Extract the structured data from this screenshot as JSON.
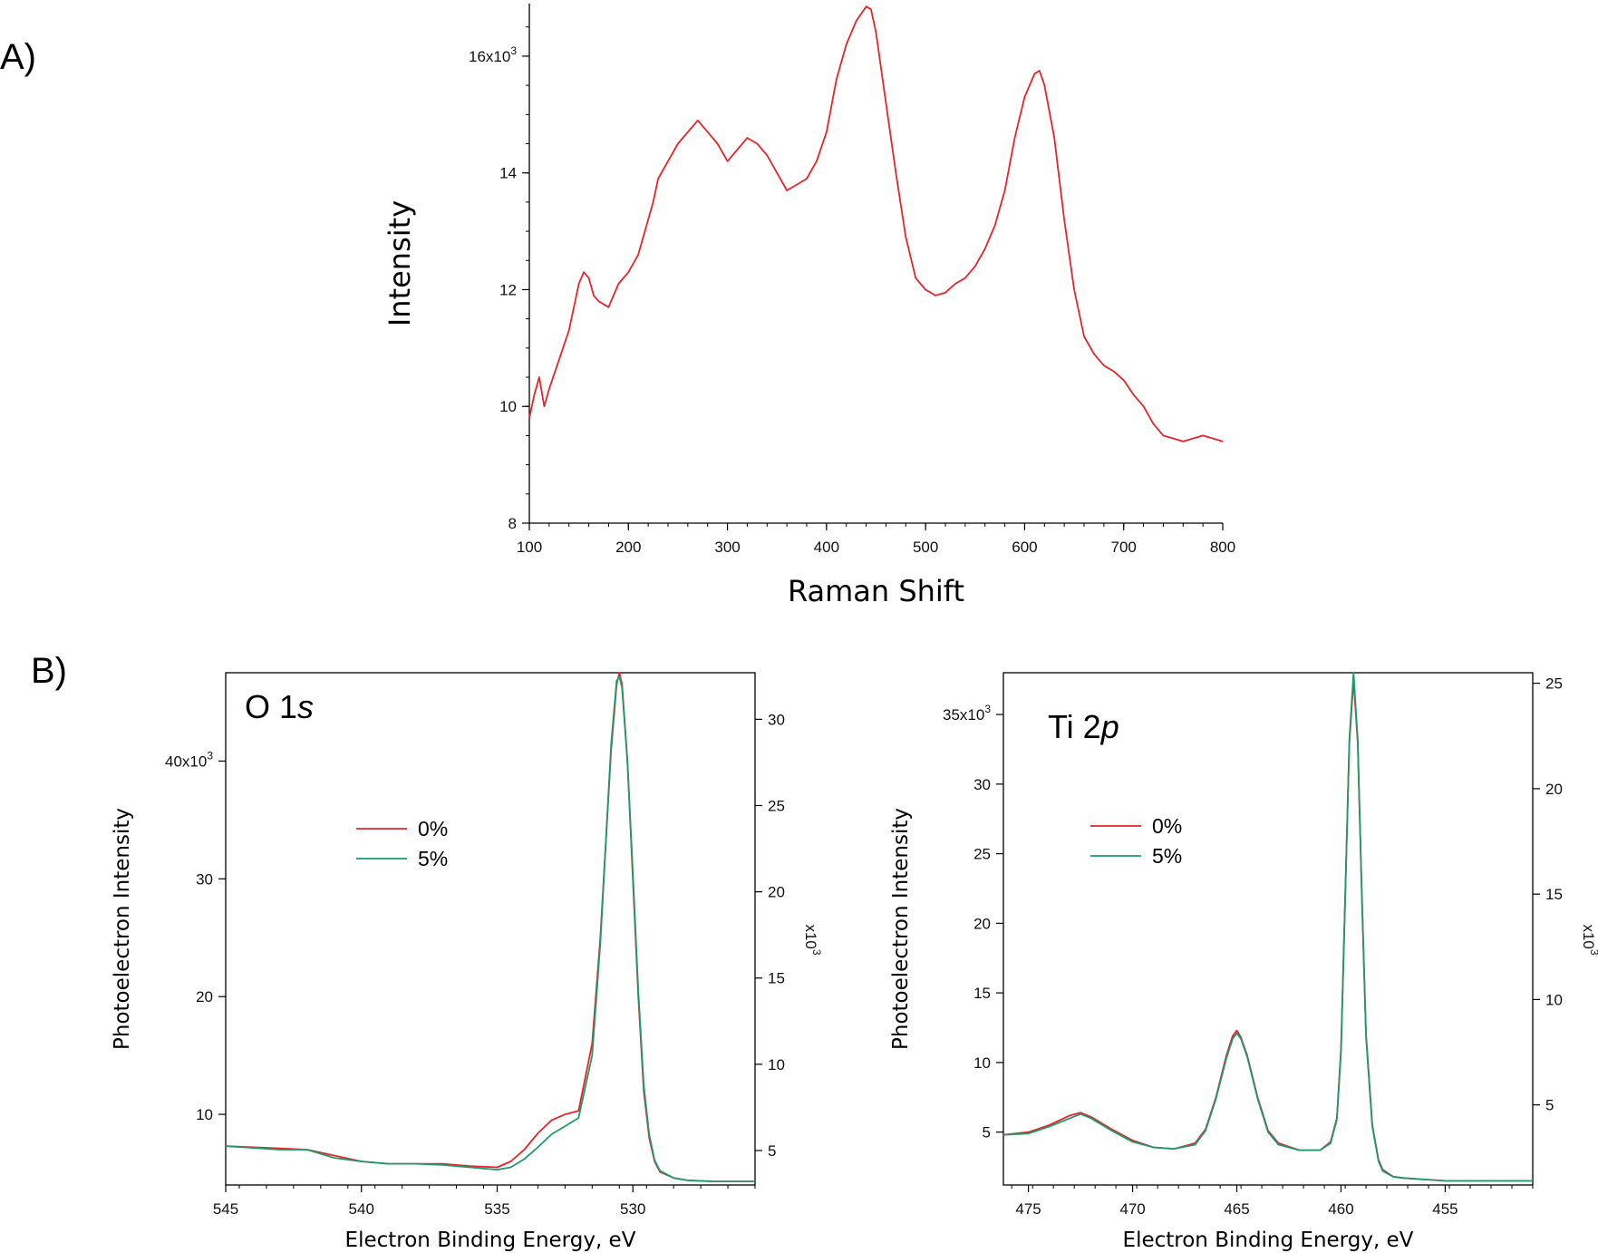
{
  "panel_labels": {
    "a": "A)",
    "b": "B)"
  },
  "colors": {
    "red": "#e8232a",
    "green": "#1e9a6a",
    "axis": "#000000"
  },
  "chart_data": [
    {
      "id": "raman",
      "type": "line",
      "xlabel": "Raman Shift",
      "ylabel": "Intensity",
      "xlim": [
        100,
        800
      ],
      "ylim": [
        8000,
        16900
      ],
      "x_ticks": [
        100,
        200,
        300,
        400,
        500,
        600,
        700,
        800
      ],
      "y_ticks": [
        8000,
        10000,
        12000,
        14000,
        16000
      ],
      "y_tick_labels": [
        "8",
        "10",
        "12",
        "14",
        "16x10³"
      ],
      "series": [
        {
          "color": "#e8232a",
          "x": [
            100,
            105,
            110,
            115,
            120,
            130,
            140,
            150,
            155,
            160,
            165,
            170,
            180,
            185,
            190,
            200,
            210,
            220,
            225,
            230,
            240,
            250,
            260,
            270,
            280,
            290,
            300,
            310,
            320,
            330,
            340,
            350,
            360,
            370,
            380,
            390,
            400,
            410,
            420,
            430,
            440,
            445,
            450,
            460,
            470,
            480,
            490,
            500,
            510,
            520,
            530,
            540,
            550,
            560,
            570,
            580,
            590,
            600,
            610,
            615,
            620,
            630,
            640,
            650,
            660,
            670,
            680,
            690,
            700,
            710,
            720,
            730,
            740,
            750,
            760,
            770,
            780,
            790,
            800
          ],
          "y": [
            9800,
            10200,
            10500,
            10000,
            10300,
            10800,
            11300,
            12100,
            12300,
            12200,
            11900,
            11800,
            11700,
            11900,
            12100,
            12300,
            12600,
            13200,
            13500,
            13900,
            14200,
            14500,
            14700,
            14900,
            14700,
            14500,
            14200,
            14400,
            14600,
            14500,
            14300,
            14000,
            13700,
            13800,
            13900,
            14200,
            14700,
            15600,
            16200,
            16600,
            16850,
            16800,
            16400,
            15200,
            14000,
            12900,
            12200,
            12000,
            11900,
            11950,
            12100,
            12200,
            12400,
            12700,
            13100,
            13700,
            14600,
            15300,
            15700,
            15750,
            15500,
            14600,
            13200,
            12000,
            11200,
            10900,
            10700,
            10600,
            10450,
            10200,
            10000,
            9700,
            9500,
            9450,
            9400,
            9450,
            9500,
            9450,
            9400
          ]
        }
      ]
    },
    {
      "id": "o1s",
      "type": "line",
      "inset_label": "O 1",
      "inset_label_italic": "s",
      "xlabel": "Electron Binding Energy, eV",
      "ylabel": "Photoelectron Intensity",
      "xlim": [
        545,
        525.5
      ],
      "ylim": [
        4000,
        47500
      ],
      "x_ticks": [
        545,
        540,
        535,
        530
      ],
      "x_tick_labels": [
        "545",
        "540",
        "535",
        "530"
      ],
      "y_ticks": [
        10000,
        20000,
        30000,
        40000
      ],
      "y_tick_labels": [
        "10",
        "20",
        "30",
        "40x10³"
      ],
      "right_ticks": [
        5000,
        10000,
        15000,
        20000,
        25000,
        30000
      ],
      "right_tick_labels": [
        "5",
        "10",
        "15",
        "20",
        "25",
        "30"
      ],
      "right_ylim": [
        3000,
        32700
      ],
      "right_axis_label": "x10³",
      "legend": [
        "0%",
        "5%"
      ],
      "series": [
        {
          "name": "0%",
          "color": "#e8232a",
          "x": [
            545,
            543,
            542,
            541,
            540,
            539,
            538,
            537,
            536,
            535,
            534.5,
            534,
            533.5,
            533,
            532.5,
            532,
            531.5,
            531.2,
            531,
            530.8,
            530.6,
            530.5,
            530.4,
            530.2,
            530,
            529.8,
            529.6,
            529.4,
            529.2,
            529,
            528.5,
            528,
            527,
            526,
            525.5
          ],
          "y": [
            7300,
            7100,
            7000,
            6500,
            6000,
            5800,
            5800,
            5800,
            5600,
            5500,
            6000,
            7000,
            8400,
            9500,
            10000,
            10300,
            16000,
            25000,
            33000,
            41000,
            46500,
            47500,
            46500,
            40000,
            30000,
            20000,
            12000,
            8000,
            6000,
            5100,
            4600,
            4400,
            4300,
            4300,
            4300
          ]
        },
        {
          "name": "5%",
          "color": "#1e9a6a",
          "x": [
            545,
            543,
            542,
            541,
            540,
            539,
            538,
            537,
            536,
            535,
            534.5,
            534,
            533.5,
            533,
            532.5,
            532,
            531.5,
            531.2,
            531,
            530.8,
            530.6,
            530.5,
            530.4,
            530.2,
            530,
            529.8,
            529.6,
            529.4,
            529.2,
            529,
            528.5,
            528,
            527,
            526,
            525.5
          ],
          "y": [
            7300,
            7000,
            7000,
            6300,
            6000,
            5800,
            5800,
            5700,
            5500,
            5300,
            5500,
            6200,
            7200,
            8300,
            9000,
            9700,
            15000,
            24500,
            33000,
            41500,
            46800,
            47200,
            46200,
            40000,
            30500,
            20500,
            12500,
            8300,
            6100,
            5200,
            4600,
            4400,
            4300,
            4300,
            4300
          ]
        }
      ]
    },
    {
      "id": "ti2p",
      "type": "line",
      "inset_label": "Ti 2",
      "inset_label_italic": "p",
      "xlabel": "Electron Binding Energy, eV",
      "ylabel": "Photoelectron Intensity",
      "xlim": [
        476.2,
        450.8
      ],
      "ylim": [
        1200,
        38000
      ],
      "x_ticks": [
        475,
        470,
        465,
        460,
        455
      ],
      "x_tick_labels": [
        "475",
        "470",
        "465",
        "460",
        "455"
      ],
      "y_ticks": [
        5000,
        10000,
        15000,
        20000,
        25000,
        30000,
        35000
      ],
      "y_tick_labels": [
        "5",
        "10",
        "15",
        "20",
        "25",
        "30",
        "35x10³"
      ],
      "right_ticks": [
        5000,
        10000,
        15000,
        20000,
        25000
      ],
      "right_tick_labels": [
        "5",
        "10",
        "15",
        "20",
        "25"
      ],
      "right_ylim": [
        1200,
        25500
      ],
      "right_axis_label": "x10³",
      "legend": [
        "0%",
        "5%"
      ],
      "series": [
        {
          "name": "0%",
          "color": "#e8232a",
          "x": [
            476.2,
            475,
            474,
            473,
            472.5,
            472,
            471,
            470,
            469,
            468,
            467,
            466.5,
            466,
            465.5,
            465.2,
            465,
            464.8,
            464.5,
            464,
            463.5,
            463,
            462,
            461,
            460.5,
            460.2,
            460,
            459.8,
            459.6,
            459.4,
            459.2,
            459,
            458.8,
            458.5,
            458.2,
            458,
            457.5,
            457,
            456,
            455,
            453,
            450.8
          ],
          "y": [
            4800,
            5000,
            5500,
            6200,
            6400,
            6100,
            5200,
            4400,
            3900,
            3800,
            4200,
            5200,
            7500,
            10500,
            11900,
            12300,
            11800,
            10500,
            7500,
            5100,
            4200,
            3700,
            3700,
            4300,
            6000,
            11000,
            22000,
            33000,
            37500,
            33000,
            22000,
            12000,
            5500,
            3000,
            2300,
            1800,
            1700,
            1600,
            1500,
            1500,
            1500
          ]
        },
        {
          "name": "5%",
          "color": "#1e9a6a",
          "x": [
            476.2,
            475,
            474,
            473,
            472.5,
            472,
            471,
            470,
            469,
            468,
            467,
            466.5,
            466,
            465.5,
            465.2,
            465,
            464.8,
            464.5,
            464,
            463.5,
            463,
            462,
            461,
            460.5,
            460.2,
            460,
            459.8,
            459.6,
            459.4,
            459.2,
            459,
            458.8,
            458.5,
            458.2,
            458,
            457.5,
            457,
            456,
            455,
            453,
            450.8
          ],
          "y": [
            4800,
            4900,
            5400,
            6000,
            6300,
            6000,
            5100,
            4300,
            3900,
            3800,
            4100,
            5100,
            7400,
            10300,
            11700,
            12100,
            11700,
            10400,
            7400,
            5000,
            4100,
            3700,
            3700,
            4200,
            5900,
            10800,
            21800,
            33200,
            38000,
            33200,
            21800,
            11800,
            5400,
            2900,
            2200,
            1800,
            1700,
            1600,
            1500,
            1500,
            1500
          ]
        }
      ]
    }
  ]
}
